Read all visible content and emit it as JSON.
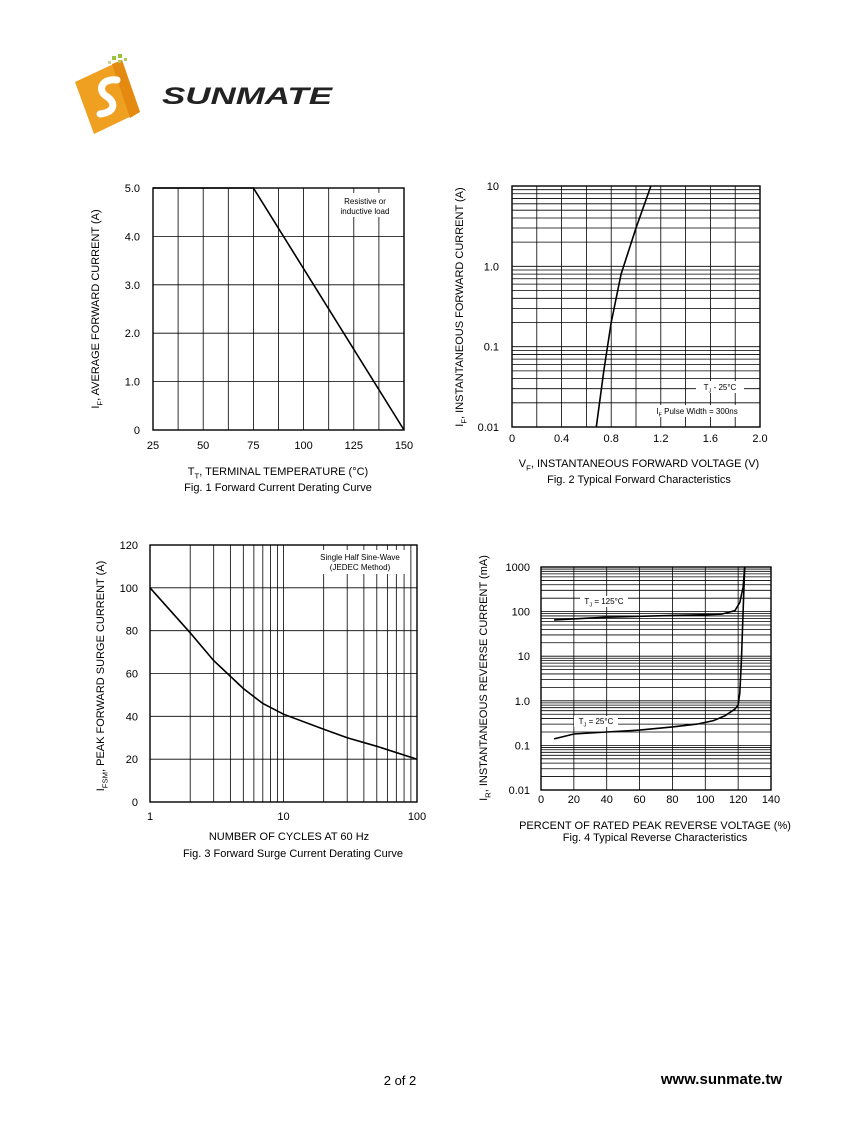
{
  "logo": {
    "wordmark": "SUNMATE",
    "colors": {
      "orange": "#f0a020",
      "dark": "#222222"
    }
  },
  "footer": {
    "page": "2 of 2",
    "url": "www.sunmate.tw"
  },
  "chart_data": [
    {
      "type": "line",
      "caption": "Fig. 1  Forward Current Derating Curve",
      "xlabel": "T_T, TERMINAL TEMPERATURE (°C)",
      "ylabel": "I_F, AVERAGE FORWARD CURRENT (A)",
      "xlim": [
        25,
        150
      ],
      "ylim": [
        0,
        5.0
      ],
      "xticks": [
        "25",
        "50",
        "75",
        "100",
        "125",
        "150"
      ],
      "yticks": [
        "0",
        "1.0",
        "2.0",
        "3.0",
        "4.0",
        "5.0"
      ],
      "annotation": [
        "Resistive or",
        "inductive load"
      ],
      "grid": true,
      "series": [
        {
          "x": [
            25,
            75,
            150
          ],
          "y": [
            5.0,
            5.0,
            0
          ]
        }
      ]
    },
    {
      "type": "line",
      "caption": "Fig. 2  Typical Forward Characteristics",
      "xlabel": "V_F, INSTANTANEOUS FORWARD VOLTAGE (V)",
      "ylabel": "I_F, INSTANTANEOUS FORWARD CURRENT (A)",
      "xlim": [
        0,
        2.0
      ],
      "ylim": [
        0.01,
        10
      ],
      "yscale": "log",
      "xticks": [
        "0",
        "0.4",
        "0.8",
        "1.2",
        "1.6",
        "2.0"
      ],
      "yticks": [
        "0.01",
        "0.1",
        "1.0",
        "10"
      ],
      "annotations": [
        "T_J - 25°C",
        "I_F Pulse Width = 300ns"
      ],
      "grid": true,
      "series": [
        {
          "x": [
            0.68,
            0.74,
            0.8,
            0.88,
            1.0,
            1.12
          ],
          "y": [
            0.01,
            0.05,
            0.2,
            0.8,
            3.0,
            10
          ]
        }
      ]
    },
    {
      "type": "line",
      "caption": "Fig. 3  Forward Surge Current Derating Curve",
      "xlabel": "NUMBER OF CYCLES AT 60 Hz",
      "ylabel": "I_FSM, PEAK FORWARD SURGE CURRENT (A)",
      "xlim": [
        1,
        100
      ],
      "xscale": "log",
      "ylim": [
        0,
        120
      ],
      "xticks": [
        "1",
        "10",
        "100"
      ],
      "yticks": [
        "0",
        "20",
        "40",
        "60",
        "80",
        "100",
        "120"
      ],
      "annotation": [
        "Single Half Sine-Wave",
        "(JEDEC Method)"
      ],
      "grid": true,
      "series": [
        {
          "x": [
            1,
            2,
            3,
            5,
            7,
            10,
            20,
            30,
            50,
            100
          ],
          "y": [
            100,
            79,
            66,
            53,
            46,
            41,
            34,
            30,
            26,
            20
          ]
        }
      ]
    },
    {
      "type": "line",
      "caption": "Fig. 4  Typical Reverse Characteristics",
      "xlabel": "PERCENT OF RATED PEAK REVERSE VOLTAGE (%)",
      "ylabel": "I_R, INSTANTANEOUS REVERSE CURRENT (mA)",
      "xlim": [
        0,
        140
      ],
      "ylim": [
        0.01,
        1000
      ],
      "yscale": "log",
      "xticks": [
        "0",
        "20",
        "40",
        "60",
        "80",
        "100",
        "120",
        "140"
      ],
      "yticks": [
        "0.01",
        "0.1",
        "1.0",
        "10",
        "100",
        "1000"
      ],
      "grid": true,
      "series": [
        {
          "name": "T_J = 125°C",
          "x": [
            8,
            40,
            80,
            100,
            110,
            118,
            121,
            123,
            124
          ],
          "y": [
            65,
            75,
            82,
            85,
            88,
            105,
            160,
            350,
            1000
          ]
        },
        {
          "name": "T_J = 25°C",
          "x": [
            8,
            20,
            40,
            60,
            80,
            95,
            105,
            112,
            118,
            120,
            121,
            122,
            123,
            124
          ],
          "y": [
            0.14,
            0.18,
            0.2,
            0.22,
            0.26,
            0.3,
            0.36,
            0.46,
            0.65,
            0.8,
            1.5,
            8,
            100,
            1000
          ]
        }
      ]
    }
  ]
}
